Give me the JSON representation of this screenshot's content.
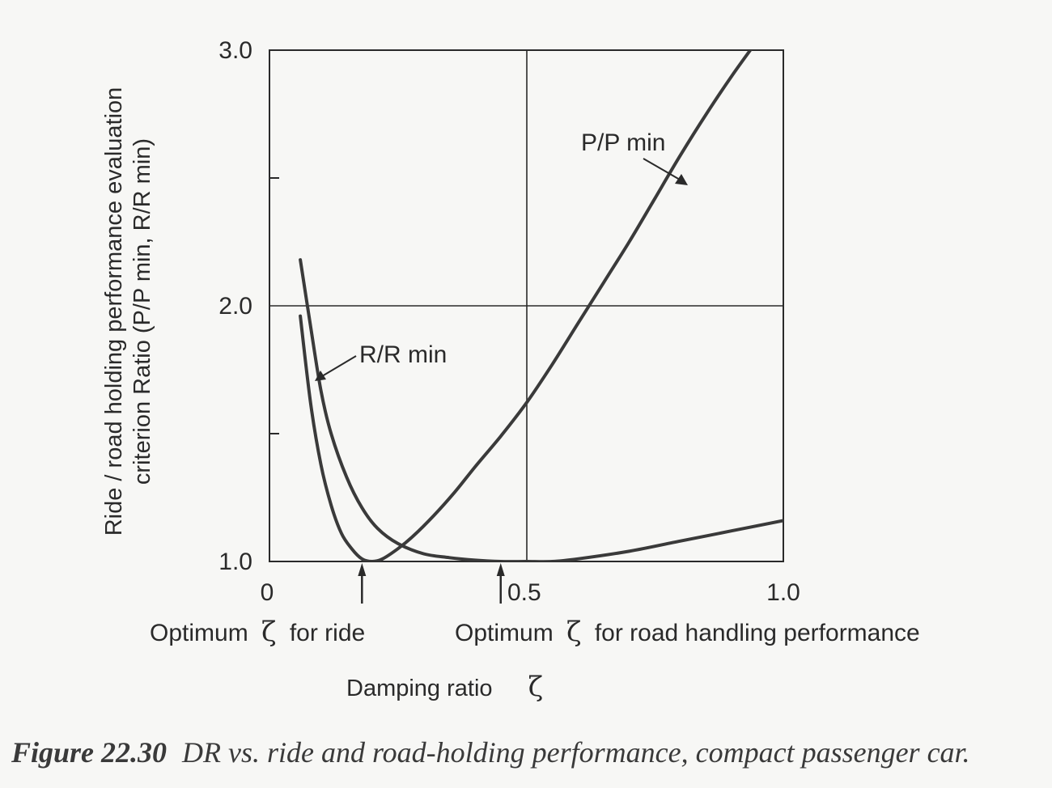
{
  "chart_data": {
    "type": "line",
    "xlabel": "Damping ratio",
    "xlabel_symbol": "ζ",
    "ylabel_line1": "Ride / road holding performance evaluation",
    "ylabel_line2": "criterion Ratio (P/P min, R/R min)",
    "xlim": [
      0,
      1.0
    ],
    "ylim": [
      1.0,
      3.0
    ],
    "x_tick_labels": [
      "0",
      "0.5",
      "1.0"
    ],
    "y_tick_labels": [
      "1.0",
      "2.0",
      "3.0"
    ],
    "grid": "x=0.5, y=2.0",
    "series": [
      {
        "name": "P/P min",
        "x": [
          0.06,
          0.08,
          0.1,
          0.12,
          0.14,
          0.16,
          0.18,
          0.2,
          0.22,
          0.25,
          0.28,
          0.32,
          0.36,
          0.4,
          0.45,
          0.5,
          0.55,
          0.6,
          0.65,
          0.7,
          0.75,
          0.8,
          0.85,
          0.9,
          0.95,
          1.0
        ],
        "y": [
          1.96,
          1.62,
          1.38,
          1.22,
          1.11,
          1.05,
          1.01,
          1.0,
          1.01,
          1.05,
          1.1,
          1.18,
          1.27,
          1.37,
          1.49,
          1.62,
          1.77,
          1.93,
          2.09,
          2.25,
          2.42,
          2.59,
          2.75,
          2.9,
          3.04,
          3.18
        ]
      },
      {
        "name": "R/R min",
        "x": [
          0.06,
          0.08,
          0.1,
          0.12,
          0.15,
          0.18,
          0.21,
          0.25,
          0.3,
          0.35,
          0.4,
          0.45,
          0.5,
          0.55,
          0.6,
          0.7,
          0.8,
          0.9,
          1.0
        ],
        "y": [
          2.18,
          1.92,
          1.67,
          1.5,
          1.33,
          1.21,
          1.13,
          1.07,
          1.03,
          1.015,
          1.005,
          1.0,
          1.0,
          1.0,
          1.01,
          1.04,
          1.08,
          1.12,
          1.16
        ]
      }
    ],
    "annotations": {
      "pp_label": "P/P min",
      "rr_label": "R/R min",
      "opt_ride_prefix": "Optimum",
      "opt_ride_symbol": "ζ",
      "opt_ride_suffix": "for ride",
      "opt_ride_x": 0.18,
      "opt_road_prefix": "Optimum",
      "opt_road_symbol": "ζ",
      "opt_road_suffix": "for road handling performance",
      "opt_road_x": 0.45
    }
  },
  "caption": {
    "number": "Figure 22.30",
    "text": "DR vs. ride and road-holding performance, compact passenger car."
  }
}
